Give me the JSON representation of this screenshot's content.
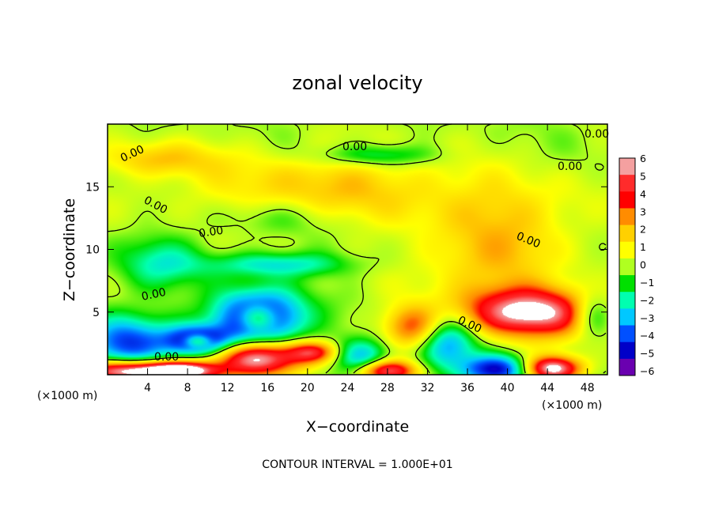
{
  "chart_data": {
    "type": "heatmap",
    "title": "zonal velocity",
    "xlabel": "X−coordinate",
    "ylabel": "Z−coordinate",
    "x_unit_left": "(×1000 m)",
    "x_unit_right": "(×1000 m)",
    "xlim": [
      0,
      50
    ],
    "ylim": [
      0,
      20
    ],
    "xticks": [
      4,
      8,
      12,
      16,
      20,
      24,
      28,
      32,
      36,
      40,
      44,
      48
    ],
    "yticks": [
      5,
      10,
      15
    ],
    "colorbar": {
      "min": -6,
      "max": 6,
      "ticks": [
        "6",
        "5",
        "4",
        "3",
        "2",
        "1",
        "0",
        "−1",
        "−2",
        "−3",
        "−4",
        "−5",
        "−6"
      ],
      "colors": [
        "#f4a0a0",
        "#ff2b2b",
        "#ff0000",
        "#ff8c00",
        "#ffd000",
        "#ffff00",
        "#b0ff20",
        "#00e000",
        "#00ffb0",
        "#00c8ff",
        "#0050ff",
        "#0000c8",
        "#6a00b0"
      ]
    },
    "contour_level": 0,
    "contour_labels": [
      "0.00",
      "0.00",
      "0.00",
      "0.00",
      "0.00",
      "0.00",
      "0.00",
      "0.00",
      "0.00",
      "0.00"
    ],
    "features": [
      {
        "x": 15.0,
        "z": 4.5,
        "u": -7.0,
        "sx": 3.0,
        "sz": 1.5
      },
      {
        "x": 15.0,
        "z": 4.5,
        "u": 5.0,
        "sx": 1.4,
        "sz": 0.8
      },
      {
        "x": 9.0,
        "z": 2.7,
        "u": -5.5,
        "sx": 2.2,
        "sz": 0.8
      },
      {
        "x": 9.0,
        "z": 2.7,
        "u": 4.0,
        "sx": 1.0,
        "sz": 0.4
      },
      {
        "x": 2.0,
        "z": 2.5,
        "u": -4.5,
        "sx": 3.0,
        "sz": 1.5
      },
      {
        "x": 2.0,
        "z": 0.3,
        "u": 7.0,
        "sx": 4.0,
        "sz": 0.6
      },
      {
        "x": 7.5,
        "z": 0.3,
        "u": 6.0,
        "sx": 2.5,
        "sz": 0.5
      },
      {
        "x": 15.0,
        "z": 1.3,
        "u": 6.5,
        "sx": 3.2,
        "sz": 1.0
      },
      {
        "x": 20.5,
        "z": 1.8,
        "u": 4.0,
        "sx": 1.8,
        "sz": 0.6
      },
      {
        "x": 25.5,
        "z": 1.5,
        "u": -3.0,
        "sx": 2.0,
        "sz": 1.0
      },
      {
        "x": 30.5,
        "z": 3.8,
        "u": 3.5,
        "sx": 2.0,
        "sz": 1.2
      },
      {
        "x": 28.0,
        "z": 0.3,
        "u": 5.5,
        "sx": 2.0,
        "sz": 0.6
      },
      {
        "x": 34.0,
        "z": 2.5,
        "u": -3.5,
        "sx": 2.0,
        "sz": 1.5
      },
      {
        "x": 42.5,
        "z": 5.0,
        "u": 6.5,
        "sx": 5.0,
        "sz": 1.4
      },
      {
        "x": 39.0,
        "z": 0.4,
        "u": -5.0,
        "sx": 2.5,
        "sz": 0.8
      },
      {
        "x": 44.5,
        "z": 0.5,
        "u": 7.0,
        "sx": 2.0,
        "sz": 0.7
      },
      {
        "x": 48.5,
        "z": 4.8,
        "u": -3.0,
        "sx": 1.5,
        "sz": 1.2
      },
      {
        "x": 17.0,
        "z": 8.8,
        "u": -2.5,
        "sx": 5.0,
        "sz": 0.7
      },
      {
        "x": 5.0,
        "z": 8.8,
        "u": -2.0,
        "sx": 3.0,
        "sz": 1.5
      },
      {
        "x": 38.0,
        "z": 9.0,
        "u": 2.0,
        "sx": 5.0,
        "sz": 2.0
      },
      {
        "x": 22.0,
        "z": 15.0,
        "u": 2.0,
        "sx": 10.0,
        "sz": 2.0
      },
      {
        "x": 40.0,
        "z": 13.0,
        "u": 1.5,
        "sx": 6.0,
        "sz": 2.0
      },
      {
        "x": 27.0,
        "z": 17.5,
        "u": -2.0,
        "sx": 4.0,
        "sz": 0.6
      },
      {
        "x": 5.0,
        "z": 17.2,
        "u": 2.0,
        "sx": 4.0,
        "sz": 1.0
      },
      {
        "x": 16.0,
        "z": 12.5,
        "u": -1.0,
        "sx": 4.0,
        "sz": 1.0
      }
    ],
    "footer": "CONTOUR INTERVAL = 1.000E+01"
  }
}
